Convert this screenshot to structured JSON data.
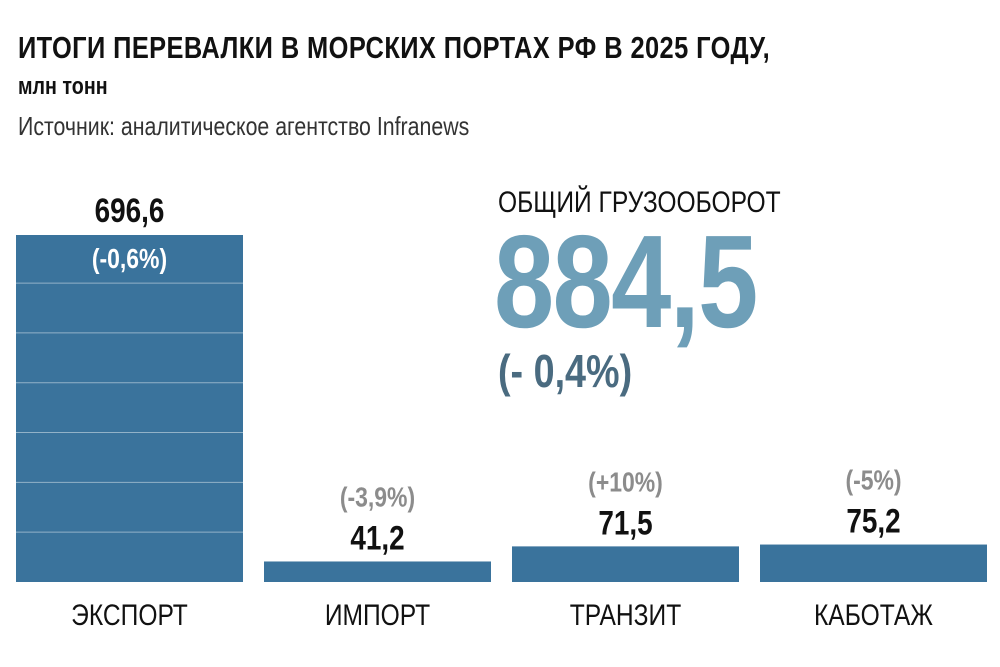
{
  "header": {
    "title": "ИТОГИ ПЕРЕВАЛКИ В МОРСКИХ ПОРТАХ РФ В 2025 ГОДУ,",
    "unit": "млн тонн",
    "source": "Источник: аналитическое агентство Infranews"
  },
  "total": {
    "label": "ОБЩИЙ ГРУЗООБОРОТ",
    "value": "884,5",
    "change": "(- 0,4%)"
  },
  "colors": {
    "bar": "#3a739c",
    "total_value": "#6e9fb8",
    "total_change": "#4a6b80",
    "change_gray": "#8c8c8c"
  },
  "chart_data": {
    "type": "bar",
    "categories": [
      "ЭКСПОРТ",
      "ИМПОРТ",
      "ТРАНЗИТ",
      "КАБОТАЖ"
    ],
    "values": [
      696.6,
      41.2,
      71.5,
      75.2
    ],
    "value_labels": [
      "696,6",
      "41,2",
      "71,5",
      "75,2"
    ],
    "change_labels": [
      "(-0,6%)",
      "(-3,9%)",
      "(+10%)",
      "(-5%)"
    ],
    "ylim": [
      0,
      700
    ],
    "grid": "inside bars every 100"
  }
}
